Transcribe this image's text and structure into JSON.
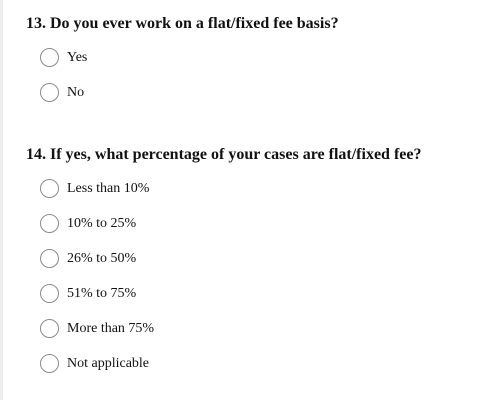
{
  "q13": {
    "title": "13. Do you ever work on a flat/fixed fee basis?",
    "options": [
      "Yes",
      "No"
    ]
  },
  "q14": {
    "title": "14. If yes, what percentage of your cases are flat/fixed fee?",
    "options": [
      "Less than 10%",
      "10% to 25%",
      "26% to 50%",
      "51% to 75%",
      "More than 75%",
      "Not applicable"
    ]
  }
}
